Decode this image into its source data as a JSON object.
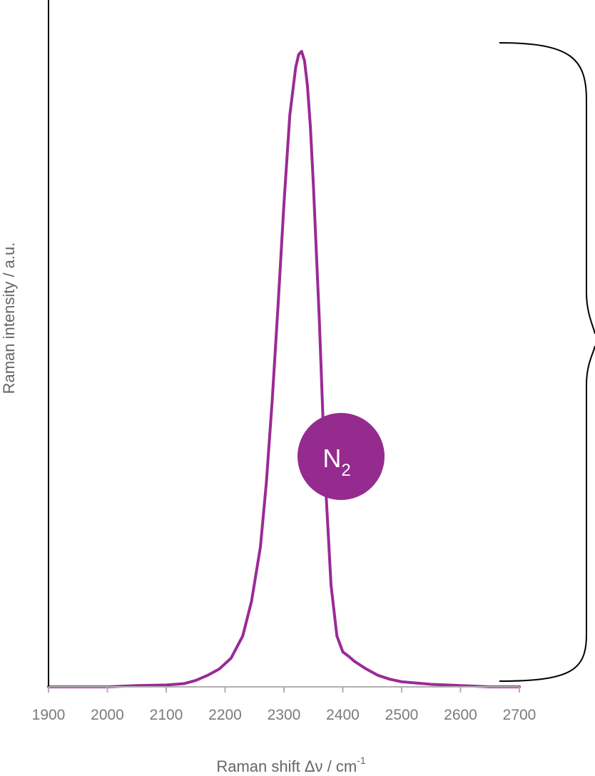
{
  "chart_data": {
    "type": "line",
    "title": "",
    "xlabel": "Raman shift Δν / cm",
    "xlabel_superscript": "-1",
    "ylabel": "Raman intensity / a.u.",
    "xlim": [
      1900,
      2700
    ],
    "ylim": [
      0,
      1
    ],
    "x_ticks": [
      1900,
      2000,
      2100,
      2200,
      2300,
      2400,
      2500,
      2600,
      2700
    ],
    "grid": false,
    "legend": "none",
    "series": [
      {
        "color": "#9b2a96",
        "x": [
          1900,
          1950,
          2000,
          2050,
          2100,
          2130,
          2150,
          2170,
          2190,
          2210,
          2230,
          2245,
          2260,
          2270,
          2280,
          2290,
          2300,
          2310,
          2320,
          2325,
          2330,
          2335,
          2340,
          2345,
          2350,
          2360,
          2370,
          2380,
          2390,
          2400,
          2410,
          2420,
          2440,
          2460,
          2480,
          2500,
          2550,
          2600,
          2650,
          2700
        ],
        "y": [
          0.0,
          0.0,
          0.0,
          0.002,
          0.003,
          0.005,
          0.01,
          0.018,
          0.028,
          0.045,
          0.08,
          0.135,
          0.22,
          0.32,
          0.45,
          0.6,
          0.76,
          0.9,
          0.975,
          0.995,
          1.0,
          0.985,
          0.945,
          0.88,
          0.79,
          0.58,
          0.33,
          0.16,
          0.08,
          0.055,
          0.048,
          0.04,
          0.028,
          0.018,
          0.012,
          0.008,
          0.004,
          0.002,
          0.0,
          0.0
        ]
      }
    ],
    "annotations": [
      {
        "type": "badge",
        "text": "N",
        "subscript": "2",
        "color": "#952a8f"
      },
      {
        "type": "brace",
        "side": "right",
        "color": "#000000"
      }
    ]
  }
}
